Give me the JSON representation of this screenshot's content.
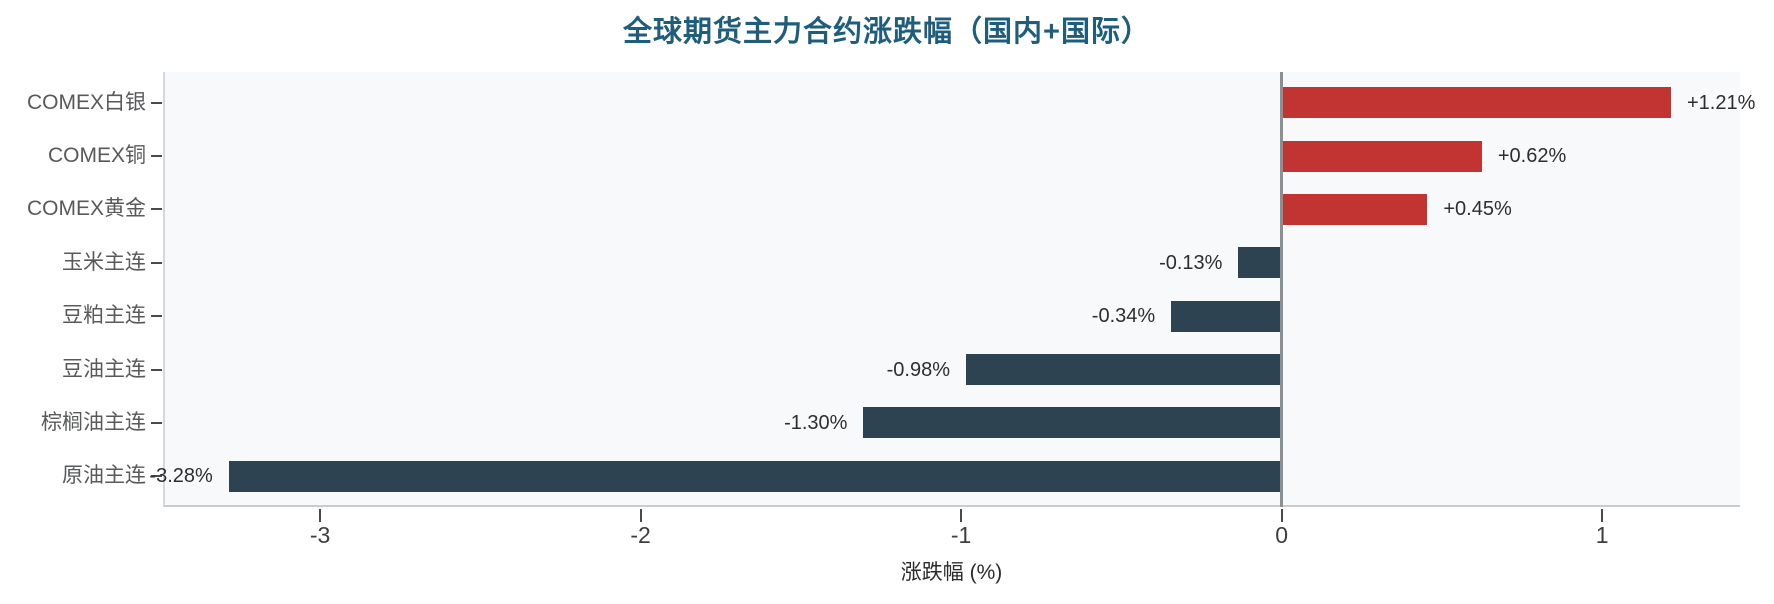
{
  "title": "全球期货主力合约涨跌幅（国内+国际）",
  "colors": {
    "positive_bar": "#c23431",
    "negative_bar": "#2d4352",
    "title": "#1f5d7c",
    "plot_bg": "#f8f9fb",
    "zero_line": "#8d9093"
  },
  "chart_data": {
    "type": "bar",
    "orientation": "horizontal",
    "title": "全球期货主力合约涨跌幅（国内+国际）",
    "xlabel": "涨跌幅 (%)",
    "xlim": [
      -3.49,
      1.43
    ],
    "grid": false,
    "legend": false,
    "categories": [
      "COMEX白银",
      "COMEX铜",
      "COMEX黄金",
      "玉米主连",
      "豆粕主连",
      "豆油主连",
      "棕榈油主连",
      "原油主连"
    ],
    "values": [
      1.21,
      0.62,
      0.45,
      -0.13,
      -0.34,
      -0.98,
      -1.3,
      -3.28
    ],
    "value_labels": [
      "+1.21%",
      "+0.62%",
      "+0.45%",
      "-0.13%",
      "-0.34%",
      "-0.98%",
      "-1.30%",
      "-3.28%"
    ],
    "ticks": [
      -3,
      -2,
      -1,
      0,
      1
    ],
    "tick_labels": [
      "-3",
      "-2",
      "-1",
      "0",
      "1"
    ]
  }
}
